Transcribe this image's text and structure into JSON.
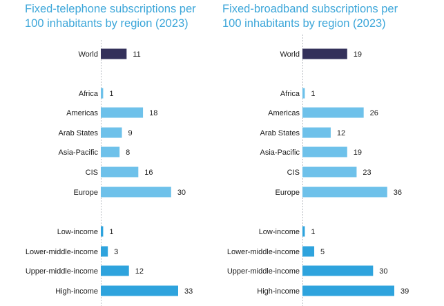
{
  "chart_data": [
    {
      "type": "bar",
      "orientation": "horizontal",
      "title_lines": [
        "Fixed-telephone subscriptions per",
        "100 inhabitants by region (2023)"
      ],
      "categories": [
        "World",
        "Africa",
        "Americas",
        "Arab States",
        "Asia-Pacific",
        "CIS",
        "Europe",
        "Low-income",
        "Lower-middle-income",
        "Upper-middle-income",
        "High-income"
      ],
      "values": [
        11,
        1,
        18,
        9,
        8,
        16,
        30,
        1,
        3,
        12,
        33
      ],
      "groups": [
        "world",
        "region",
        "region",
        "region",
        "region",
        "region",
        "region",
        "income",
        "income",
        "income",
        "income"
      ],
      "colors": {
        "world": "#33305a",
        "region": "#6ec1ea",
        "income": "#2ea3dd"
      },
      "xlim": [
        0,
        33
      ],
      "grid": false,
      "legend": "none"
    },
    {
      "type": "bar",
      "orientation": "horizontal",
      "title_lines": [
        "Fixed-broadband subscriptions per",
        "100 inhabitants by region (2023)"
      ],
      "categories": [
        "World",
        "Africa",
        "Americas",
        "Arab States",
        "Asia-Pacific",
        "CIS",
        "Europe",
        "Low-income",
        "Lower-middle-income",
        "Upper-middle-income",
        "High-income"
      ],
      "values": [
        19,
        1,
        26,
        12,
        19,
        23,
        36,
        1,
        5,
        30,
        39
      ],
      "groups": [
        "world",
        "region",
        "region",
        "region",
        "region",
        "region",
        "region",
        "income",
        "income",
        "income",
        "income"
      ],
      "colors": {
        "world": "#33305a",
        "region": "#6ec1ea",
        "income": "#2ea3dd"
      },
      "xlim": [
        0,
        39
      ],
      "grid": false,
      "legend": "none"
    }
  ]
}
